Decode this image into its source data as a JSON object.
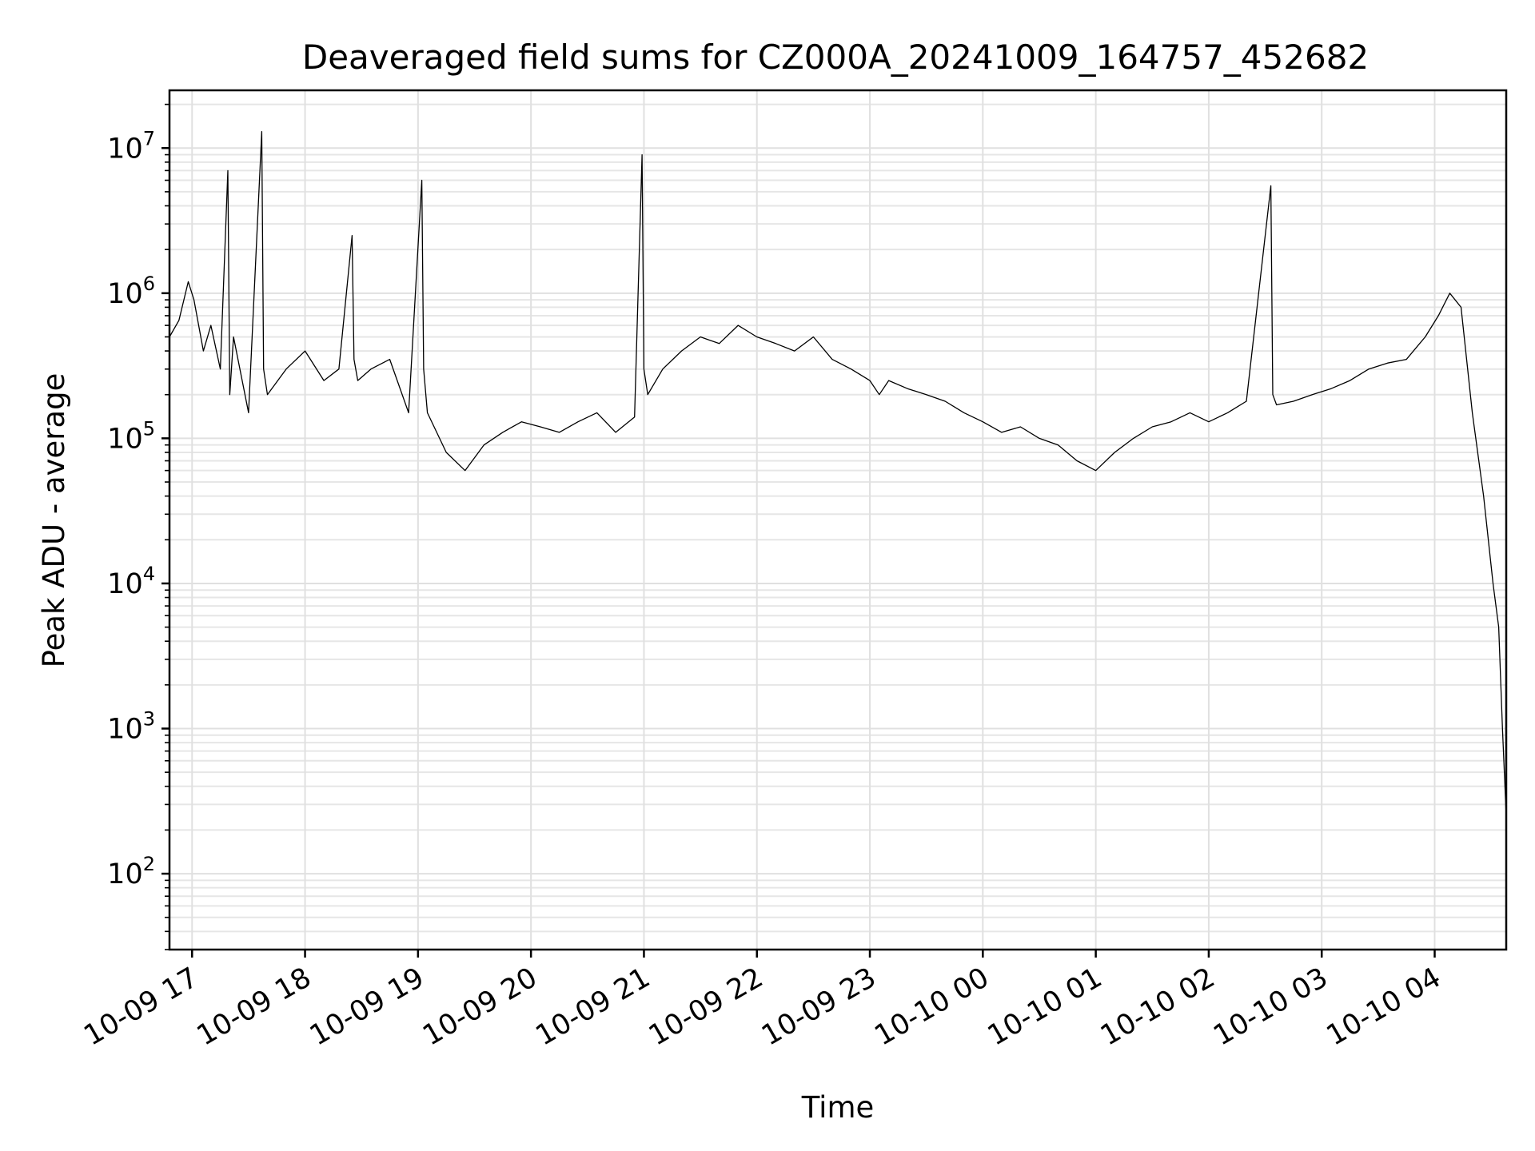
{
  "chart_data": {
    "type": "line",
    "title": "Deaveraged field sums for CZ000A_20241009_164757_452682",
    "xlabel": "Time",
    "ylabel": "Peak ADU - average",
    "yscale": "log",
    "ylim": [
      30,
      25000000
    ],
    "xlim": [
      "2024-10-09 16:48",
      "2024-10-10 04:38"
    ],
    "grid": true,
    "color": "#000000",
    "x_ticks": [
      {
        "label": "10-09 17",
        "value": "2024-10-09 17:00"
      },
      {
        "label": "10-09 18",
        "value": "2024-10-09 18:00"
      },
      {
        "label": "10-09 19",
        "value": "2024-10-09 19:00"
      },
      {
        "label": "10-09 20",
        "value": "2024-10-09 20:00"
      },
      {
        "label": "10-09 21",
        "value": "2024-10-09 21:00"
      },
      {
        "label": "10-09 22",
        "value": "2024-10-09 22:00"
      },
      {
        "label": "10-09 23",
        "value": "2024-10-09 23:00"
      },
      {
        "label": "10-10 00",
        "value": "2024-10-10 00:00"
      },
      {
        "label": "10-10 01",
        "value": "2024-10-10 01:00"
      },
      {
        "label": "10-10 02",
        "value": "2024-10-10 02:00"
      },
      {
        "label": "10-10 03",
        "value": "2024-10-10 03:00"
      },
      {
        "label": "10-10 04",
        "value": "2024-10-10 04:00"
      }
    ],
    "y_ticks": [
      {
        "base": "10",
        "exp": "2",
        "value": 100
      },
      {
        "base": "10",
        "exp": "3",
        "value": 1000
      },
      {
        "base": "10",
        "exp": "4",
        "value": 10000
      },
      {
        "base": "10",
        "exp": "5",
        "value": 100000
      },
      {
        "base": "10",
        "exp": "6",
        "value": 1000000
      },
      {
        "base": "10",
        "exp": "7",
        "value": 10000000
      }
    ],
    "series": [
      {
        "x": [
          "2024-10-09 16:48",
          "2024-10-09 16:53",
          "2024-10-09 16:58",
          "2024-10-09 17:01",
          "2024-10-09 17:06",
          "2024-10-09 17:10",
          "2024-10-09 17:15",
          "2024-10-09 17:19",
          "2024-10-09 17:20",
          "2024-10-09 17:22",
          "2024-10-09 17:30",
          "2024-10-09 17:37",
          "2024-10-09 17:38",
          "2024-10-09 17:40",
          "2024-10-09 17:50",
          "2024-10-09 18:00",
          "2024-10-09 18:10",
          "2024-10-09 18:18",
          "2024-10-09 18:25",
          "2024-10-09 18:26",
          "2024-10-09 18:28",
          "2024-10-09 18:35",
          "2024-10-09 18:45",
          "2024-10-09 18:55",
          "2024-10-09 19:02",
          "2024-10-09 19:03",
          "2024-10-09 19:05",
          "2024-10-09 19:15",
          "2024-10-09 19:25",
          "2024-10-09 19:35",
          "2024-10-09 19:45",
          "2024-10-09 19:55",
          "2024-10-09 20:05",
          "2024-10-09 20:15",
          "2024-10-09 20:25",
          "2024-10-09 20:35",
          "2024-10-09 20:45",
          "2024-10-09 20:55",
          "2024-10-09 20:59",
          "2024-10-09 21:00",
          "2024-10-09 21:02",
          "2024-10-09 21:10",
          "2024-10-09 21:20",
          "2024-10-09 21:30",
          "2024-10-09 21:40",
          "2024-10-09 21:50",
          "2024-10-09 22:00",
          "2024-10-09 22:10",
          "2024-10-09 22:20",
          "2024-10-09 22:30",
          "2024-10-09 22:40",
          "2024-10-09 22:50",
          "2024-10-09 23:00",
          "2024-10-09 23:05",
          "2024-10-09 23:10",
          "2024-10-09 23:20",
          "2024-10-09 23:30",
          "2024-10-09 23:40",
          "2024-10-09 23:50",
          "2024-10-10 00:00",
          "2024-10-10 00:10",
          "2024-10-10 00:20",
          "2024-10-10 00:30",
          "2024-10-10 00:40",
          "2024-10-10 00:50",
          "2024-10-10 01:00",
          "2024-10-10 01:10",
          "2024-10-10 01:20",
          "2024-10-10 01:30",
          "2024-10-10 01:40",
          "2024-10-10 01:50",
          "2024-10-10 02:00",
          "2024-10-10 02:10",
          "2024-10-10 02:20",
          "2024-10-10 02:33",
          "2024-10-10 02:34",
          "2024-10-10 02:36",
          "2024-10-10 02:45",
          "2024-10-10 02:55",
          "2024-10-10 03:05",
          "2024-10-10 03:15",
          "2024-10-10 03:25",
          "2024-10-10 03:35",
          "2024-10-10 03:45",
          "2024-10-10 03:55",
          "2024-10-10 04:02",
          "2024-10-10 04:08",
          "2024-10-10 04:14",
          "2024-10-10 04:20",
          "2024-10-10 04:26",
          "2024-10-10 04:31",
          "2024-10-10 04:34",
          "2024-10-10 04:36",
          "2024-10-10 04:38"
        ],
        "y": [
          500000,
          650000,
          1200000,
          900000,
          400000,
          600000,
          300000,
          7000000,
          200000,
          500000,
          150000,
          13000000,
          300000,
          200000,
          300000,
          400000,
          250000,
          300000,
          2500000,
          350000,
          250000,
          300000,
          350000,
          150000,
          6000000,
          300000,
          150000,
          80000,
          60000,
          90000,
          110000,
          130000,
          120000,
          110000,
          130000,
          150000,
          110000,
          140000,
          9000000,
          300000,
          200000,
          300000,
          400000,
          500000,
          450000,
          600000,
          500000,
          450000,
          400000,
          500000,
          350000,
          300000,
          250000,
          200000,
          250000,
          220000,
          200000,
          180000,
          150000,
          130000,
          110000,
          120000,
          100000,
          90000,
          70000,
          60000,
          80000,
          100000,
          120000,
          130000,
          150000,
          130000,
          150000,
          180000,
          5500000,
          200000,
          170000,
          180000,
          200000,
          220000,
          250000,
          300000,
          330000,
          350000,
          500000,
          700000,
          1000000,
          800000,
          150000,
          40000,
          10000,
          5000,
          1000,
          250
        ]
      }
    ]
  }
}
